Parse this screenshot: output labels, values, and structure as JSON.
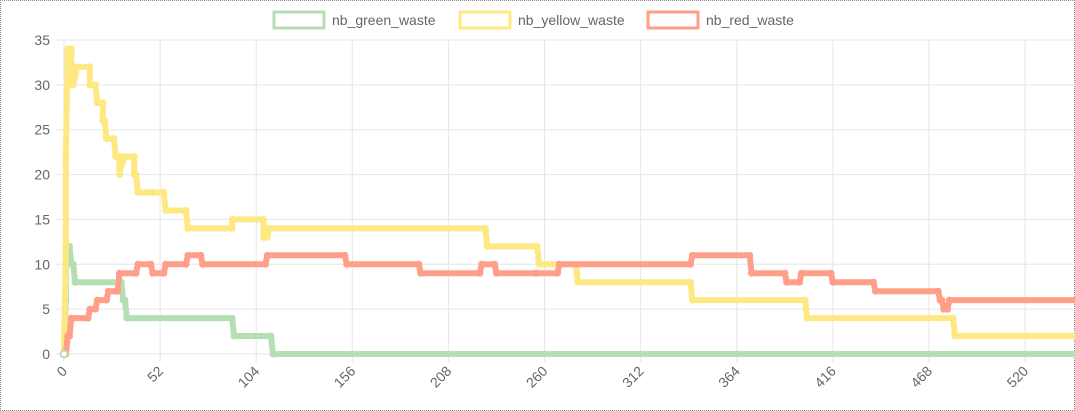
{
  "chart_data": {
    "type": "line",
    "title": "",
    "xlabel": "",
    "ylabel": "",
    "xlim": [
      0,
      547
    ],
    "ylim": [
      0,
      35
    ],
    "x_ticks": [
      0,
      52,
      104,
      156,
      208,
      260,
      312,
      364,
      416,
      468,
      520
    ],
    "y_ticks": [
      0,
      5,
      10,
      15,
      20,
      25,
      30,
      35
    ],
    "grid": true,
    "legend_position": "top",
    "series": [
      {
        "name": "nb_green_waste",
        "color": "#b5dfb3",
        "points": [
          [
            0,
            0
          ],
          [
            1,
            6
          ],
          [
            1,
            12
          ],
          [
            3,
            12
          ],
          [
            4,
            10
          ],
          [
            5,
            10
          ],
          [
            6,
            8
          ],
          [
            31,
            8
          ],
          [
            32,
            6
          ],
          [
            33,
            6
          ],
          [
            34,
            4
          ],
          [
            91,
            4
          ],
          [
            92,
            2
          ],
          [
            112,
            2
          ],
          [
            113,
            0
          ],
          [
            547,
            0
          ]
        ]
      },
      {
        "name": "nb_yellow_waste",
        "color": "#fde882",
        "points": [
          [
            0,
            0
          ],
          [
            1,
            12
          ],
          [
            1,
            22
          ],
          [
            2,
            34
          ],
          [
            4,
            34
          ],
          [
            4,
            30
          ],
          [
            5,
            30
          ],
          [
            6,
            31
          ],
          [
            7,
            32
          ],
          [
            14,
            32
          ],
          [
            14,
            30
          ],
          [
            17,
            30
          ],
          [
            18,
            28
          ],
          [
            21,
            28
          ],
          [
            21,
            26
          ],
          [
            22,
            26
          ],
          [
            23,
            24
          ],
          [
            27,
            24
          ],
          [
            28,
            22
          ],
          [
            30,
            22
          ],
          [
            30,
            20
          ],
          [
            31,
            21
          ],
          [
            33,
            22
          ],
          [
            38,
            22
          ],
          [
            38,
            20
          ],
          [
            39,
            20
          ],
          [
            40,
            18
          ],
          [
            47,
            18
          ],
          [
            48,
            18
          ],
          [
            54,
            18
          ],
          [
            55,
            16
          ],
          [
            66,
            16
          ],
          [
            67,
            14
          ],
          [
            91,
            14
          ],
          [
            91,
            15
          ],
          [
            108,
            15
          ],
          [
            108,
            13
          ],
          [
            110,
            13
          ],
          [
            111,
            14
          ],
          [
            228,
            14
          ],
          [
            229,
            12
          ],
          [
            256,
            12
          ],
          [
            257,
            10
          ],
          [
            277,
            10
          ],
          [
            278,
            8
          ],
          [
            339,
            8
          ],
          [
            340,
            6
          ],
          [
            401,
            6
          ],
          [
            402,
            4
          ],
          [
            481,
            4
          ],
          [
            482,
            2
          ],
          [
            547,
            2
          ]
        ]
      },
      {
        "name": "nb_red_waste",
        "color": "#ff9f8a",
        "points": [
          [
            0,
            0
          ],
          [
            1,
            0
          ],
          [
            2,
            2
          ],
          [
            3,
            2
          ],
          [
            4,
            4
          ],
          [
            13,
            4
          ],
          [
            14,
            5
          ],
          [
            17,
            5
          ],
          [
            18,
            6
          ],
          [
            23,
            6
          ],
          [
            24,
            7
          ],
          [
            28,
            7
          ],
          [
            29,
            7
          ],
          [
            30,
            9
          ],
          [
            39,
            9
          ],
          [
            40,
            10
          ],
          [
            47,
            10
          ],
          [
            48,
            9
          ],
          [
            54,
            9
          ],
          [
            55,
            10
          ],
          [
            66,
            10
          ],
          [
            67,
            11
          ],
          [
            74,
            11
          ],
          [
            75,
            10
          ],
          [
            109,
            10
          ],
          [
            110,
            11
          ],
          [
            152,
            11
          ],
          [
            153,
            10
          ],
          [
            192,
            10
          ],
          [
            193,
            9
          ],
          [
            225,
            9
          ],
          [
            226,
            10
          ],
          [
            233,
            10
          ],
          [
            234,
            9
          ],
          [
            255,
            9
          ],
          [
            256,
            9
          ],
          [
            267,
            9
          ],
          [
            268,
            10
          ],
          [
            339,
            10
          ],
          [
            340,
            11
          ],
          [
            371,
            11
          ],
          [
            372,
            9
          ],
          [
            390,
            9
          ],
          [
            391,
            8
          ],
          [
            398,
            8
          ],
          [
            399,
            9
          ],
          [
            415,
            9
          ],
          [
            416,
            8
          ],
          [
            438,
            8
          ],
          [
            439,
            7
          ],
          [
            473,
            7
          ],
          [
            474,
            6
          ],
          [
            475,
            6
          ],
          [
            476,
            5
          ],
          [
            478,
            5
          ],
          [
            479,
            6
          ],
          [
            547,
            6
          ]
        ]
      }
    ]
  }
}
